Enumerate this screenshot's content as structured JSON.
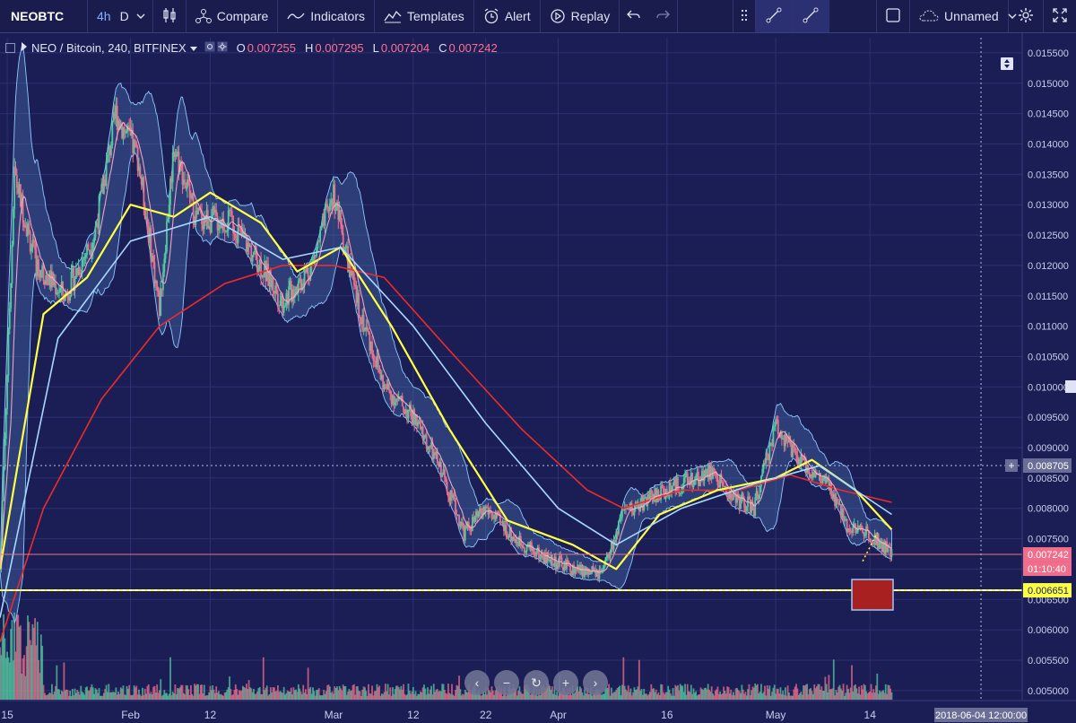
{
  "toolbar": {
    "symbol": "NEOBTC",
    "interval": "4h",
    "interval_d": "D",
    "compare": "Compare",
    "indicators": "Indicators",
    "templates": "Templates",
    "alert": "Alert",
    "replay": "Replay",
    "layout_name": "Unnamed"
  },
  "legend": {
    "title": "NEO / Bitcoin, 240, BITFINEX",
    "o_label": "O",
    "o": "0.007255",
    "h_label": "H",
    "h": "0.007295",
    "l_label": "L",
    "l": "0.007204",
    "c_label": "C",
    "c": "0.007242"
  },
  "colors": {
    "background": "#1b1e55",
    "grid": "#2c3170",
    "up": "#55c8a0",
    "down": "#f06e8c",
    "ma_yellow": "#ffff44",
    "ma_red": "#ee2b2b",
    "ma_lightblue": "#a7d8ff",
    "ma_pink": "#ffb0c8",
    "band": "#8ec8ff"
  },
  "chart_data": {
    "type": "candlestick",
    "title": "NEO / Bitcoin, 240, BITFINEX",
    "x_tick_labels": [
      "15",
      "Feb",
      "12",
      "Mar",
      "12",
      "22",
      "Apr",
      "16",
      "May",
      "14"
    ],
    "y_tick_labels": [
      "0.015500",
      "0.015000",
      "0.014500",
      "0.014000",
      "0.013500",
      "0.013000",
      "0.012500",
      "0.012000",
      "0.011500",
      "0.011000",
      "0.010500",
      "0.010000",
      "0.009500",
      "0.009000",
      "0.008500",
      "0.008000",
      "0.007500",
      "0.007000",
      "0.006500",
      "0.006000",
      "0.005500",
      "0.005000"
    ],
    "ylim": [
      0.00485,
      0.01575
    ],
    "x_range_days": [
      "2018-01-14",
      "2018-06-04"
    ],
    "last_price": "0.007242",
    "last_price_countdown": "01:10:40",
    "crosshair_price": "0.008705",
    "crosshair_date": "2018-06-04 12:00:00",
    "horizontal_line_price": "0.006651",
    "close_path": [
      [
        "2018-01-14",
        0.007
      ],
      [
        "2018-01-16",
        0.0135
      ],
      [
        "2018-01-19",
        0.012
      ],
      [
        "2018-01-23",
        0.0115
      ],
      [
        "2018-01-27",
        0.0125
      ],
      [
        "2018-01-30",
        0.0145
      ],
      [
        "2018-02-02",
        0.0138
      ],
      [
        "2018-02-05",
        0.0113
      ],
      [
        "2018-02-07",
        0.014
      ],
      [
        "2018-02-10",
        0.0128
      ],
      [
        "2018-02-15",
        0.0127
      ],
      [
        "2018-02-19",
        0.012
      ],
      [
        "2018-02-22",
        0.0114
      ],
      [
        "2018-02-26",
        0.012
      ],
      [
        "2018-03-01",
        0.0132
      ],
      [
        "2018-03-04",
        0.0115
      ],
      [
        "2018-03-08",
        0.01
      ],
      [
        "2018-03-12",
        0.0095
      ],
      [
        "2018-03-16",
        0.0086
      ],
      [
        "2018-03-19",
        0.0076
      ],
      [
        "2018-03-22",
        0.008
      ],
      [
        "2018-03-26",
        0.0075
      ],
      [
        "2018-03-30",
        0.0072
      ],
      [
        "2018-04-03",
        0.007
      ],
      [
        "2018-04-07",
        0.0069
      ],
      [
        "2018-04-10",
        0.0079
      ],
      [
        "2018-04-14",
        0.0082
      ],
      [
        "2018-04-18",
        0.0084
      ],
      [
        "2018-04-22",
        0.0086
      ],
      [
        "2018-04-25",
        0.0082
      ],
      [
        "2018-04-28",
        0.008
      ],
      [
        "2018-05-01",
        0.0094
      ],
      [
        "2018-05-04",
        0.0088
      ],
      [
        "2018-05-08",
        0.0084
      ],
      [
        "2018-05-11",
        0.0077
      ],
      [
        "2018-05-14",
        0.0076
      ],
      [
        "2018-05-17",
        0.00724
      ]
    ],
    "series": [
      {
        "name": "",
        "color": "#ee2b2b",
        "values": [
          [
            "2018-01-14",
            0.0058
          ],
          [
            "2018-01-20",
            0.008
          ],
          [
            "2018-01-28",
            0.0098
          ],
          [
            "2018-02-05",
            0.011
          ],
          [
            "2018-02-14",
            0.0117
          ],
          [
            "2018-02-22",
            0.012
          ],
          [
            "2018-03-01",
            0.012
          ],
          [
            "2018-03-08",
            0.0118
          ],
          [
            "2018-03-17",
            0.0106
          ],
          [
            "2018-03-27",
            0.0093
          ],
          [
            "2018-04-05",
            0.0083
          ],
          [
            "2018-04-10",
            0.008
          ],
          [
            "2018-04-18",
            0.0083
          ],
          [
            "2018-04-26",
            0.0083
          ],
          [
            "2018-05-03",
            0.00855
          ],
          [
            "2018-05-10",
            0.0083
          ],
          [
            "2018-05-17",
            0.0081
          ]
        ]
      },
      {
        "name": "",
        "color": "#ffff44",
        "values": [
          [
            "2018-01-14",
            0.007
          ],
          [
            "2018-01-20",
            0.0112
          ],
          [
            "2018-01-26",
            0.0118
          ],
          [
            "2018-02-01",
            0.013
          ],
          [
            "2018-02-07",
            0.0128
          ],
          [
            "2018-02-12",
            0.0132
          ],
          [
            "2018-02-19",
            0.0127
          ],
          [
            "2018-02-24",
            0.0119
          ],
          [
            "2018-03-02",
            0.0123
          ],
          [
            "2018-03-09",
            0.011
          ],
          [
            "2018-03-17",
            0.0093
          ],
          [
            "2018-03-25",
            0.0078
          ],
          [
            "2018-04-03",
            0.0074
          ],
          [
            "2018-04-09",
            0.007
          ],
          [
            "2018-04-15",
            0.0079
          ],
          [
            "2018-04-23",
            0.0083
          ],
          [
            "2018-05-01",
            0.0085
          ],
          [
            "2018-05-06",
            0.0088
          ],
          [
            "2018-05-12",
            0.0083
          ],
          [
            "2018-05-17",
            0.00765
          ]
        ]
      },
      {
        "name": "",
        "color": "#a7d8ff",
        "values": [
          [
            "2018-01-14",
            0.0062
          ],
          [
            "2018-01-22",
            0.0108
          ],
          [
            "2018-02-01",
            0.0124
          ],
          [
            "2018-02-12",
            0.0128
          ],
          [
            "2018-02-22",
            0.0121
          ],
          [
            "2018-03-02",
            0.0123
          ],
          [
            "2018-03-12",
            0.011
          ],
          [
            "2018-03-22",
            0.0094
          ],
          [
            "2018-04-01",
            0.008
          ],
          [
            "2018-04-09",
            0.0074
          ],
          [
            "2018-04-18",
            0.008
          ],
          [
            "2018-04-28",
            0.0084
          ],
          [
            "2018-05-07",
            0.0087
          ],
          [
            "2018-05-17",
            0.0079
          ]
        ]
      }
    ]
  }
}
